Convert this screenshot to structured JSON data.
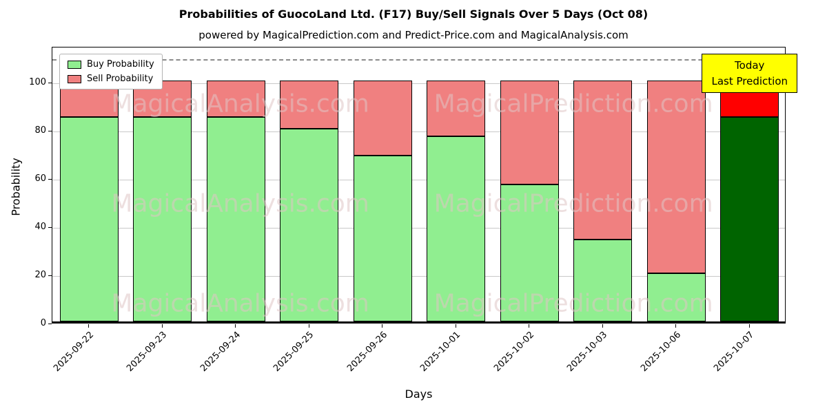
{
  "chart_data": {
    "type": "bar",
    "stacked": true,
    "title": "Probabilities of GuocoLand Ltd. (F17) Buy/Sell Signals Over 5 Days (Oct 08)",
    "subtitle": "powered by MagicalPrediction.com and Predict-Price.com and MagicalAnalysis.com",
    "xlabel": "Days",
    "ylabel": "Probability",
    "ylim": [
      0,
      115
    ],
    "yticks": [
      0,
      20,
      40,
      60,
      80,
      100
    ],
    "dashed_threshold_y": 110,
    "grid": true,
    "legend_position": "upper left",
    "categories": [
      "2025-09-22",
      "2025-09-23",
      "2025-09-24",
      "2025-09-25",
      "2025-09-26",
      "2025-10-01",
      "2025-10-02",
      "2025-10-03",
      "2025-10-06",
      "2025-10-07"
    ],
    "series": [
      {
        "name": "Buy Probability",
        "values": [
          85,
          85,
          85,
          80,
          69,
          77,
          57,
          34,
          20,
          85
        ]
      },
      {
        "name": "Sell Probability",
        "values": [
          15,
          15,
          15,
          20,
          31,
          23,
          43,
          66,
          80,
          15
        ]
      }
    ],
    "highlight_last_bar": true
  },
  "annotation_box": {
    "line1": "Today",
    "line2": "Last Prediction"
  },
  "watermarks": [
    "MagicalAnalysis.com",
    "MagicalPrediction.com"
  ],
  "colors": {
    "buy": "#90ee90",
    "sell": "#f08080",
    "buy_today": "#006400",
    "sell_today": "#ff0000",
    "bar_edge": "#000000",
    "grid": "#c8c8c8",
    "dashed_line": "#8a8a8a",
    "today_box_bg": "#ffff00",
    "watermark": "#e0c6c6"
  }
}
